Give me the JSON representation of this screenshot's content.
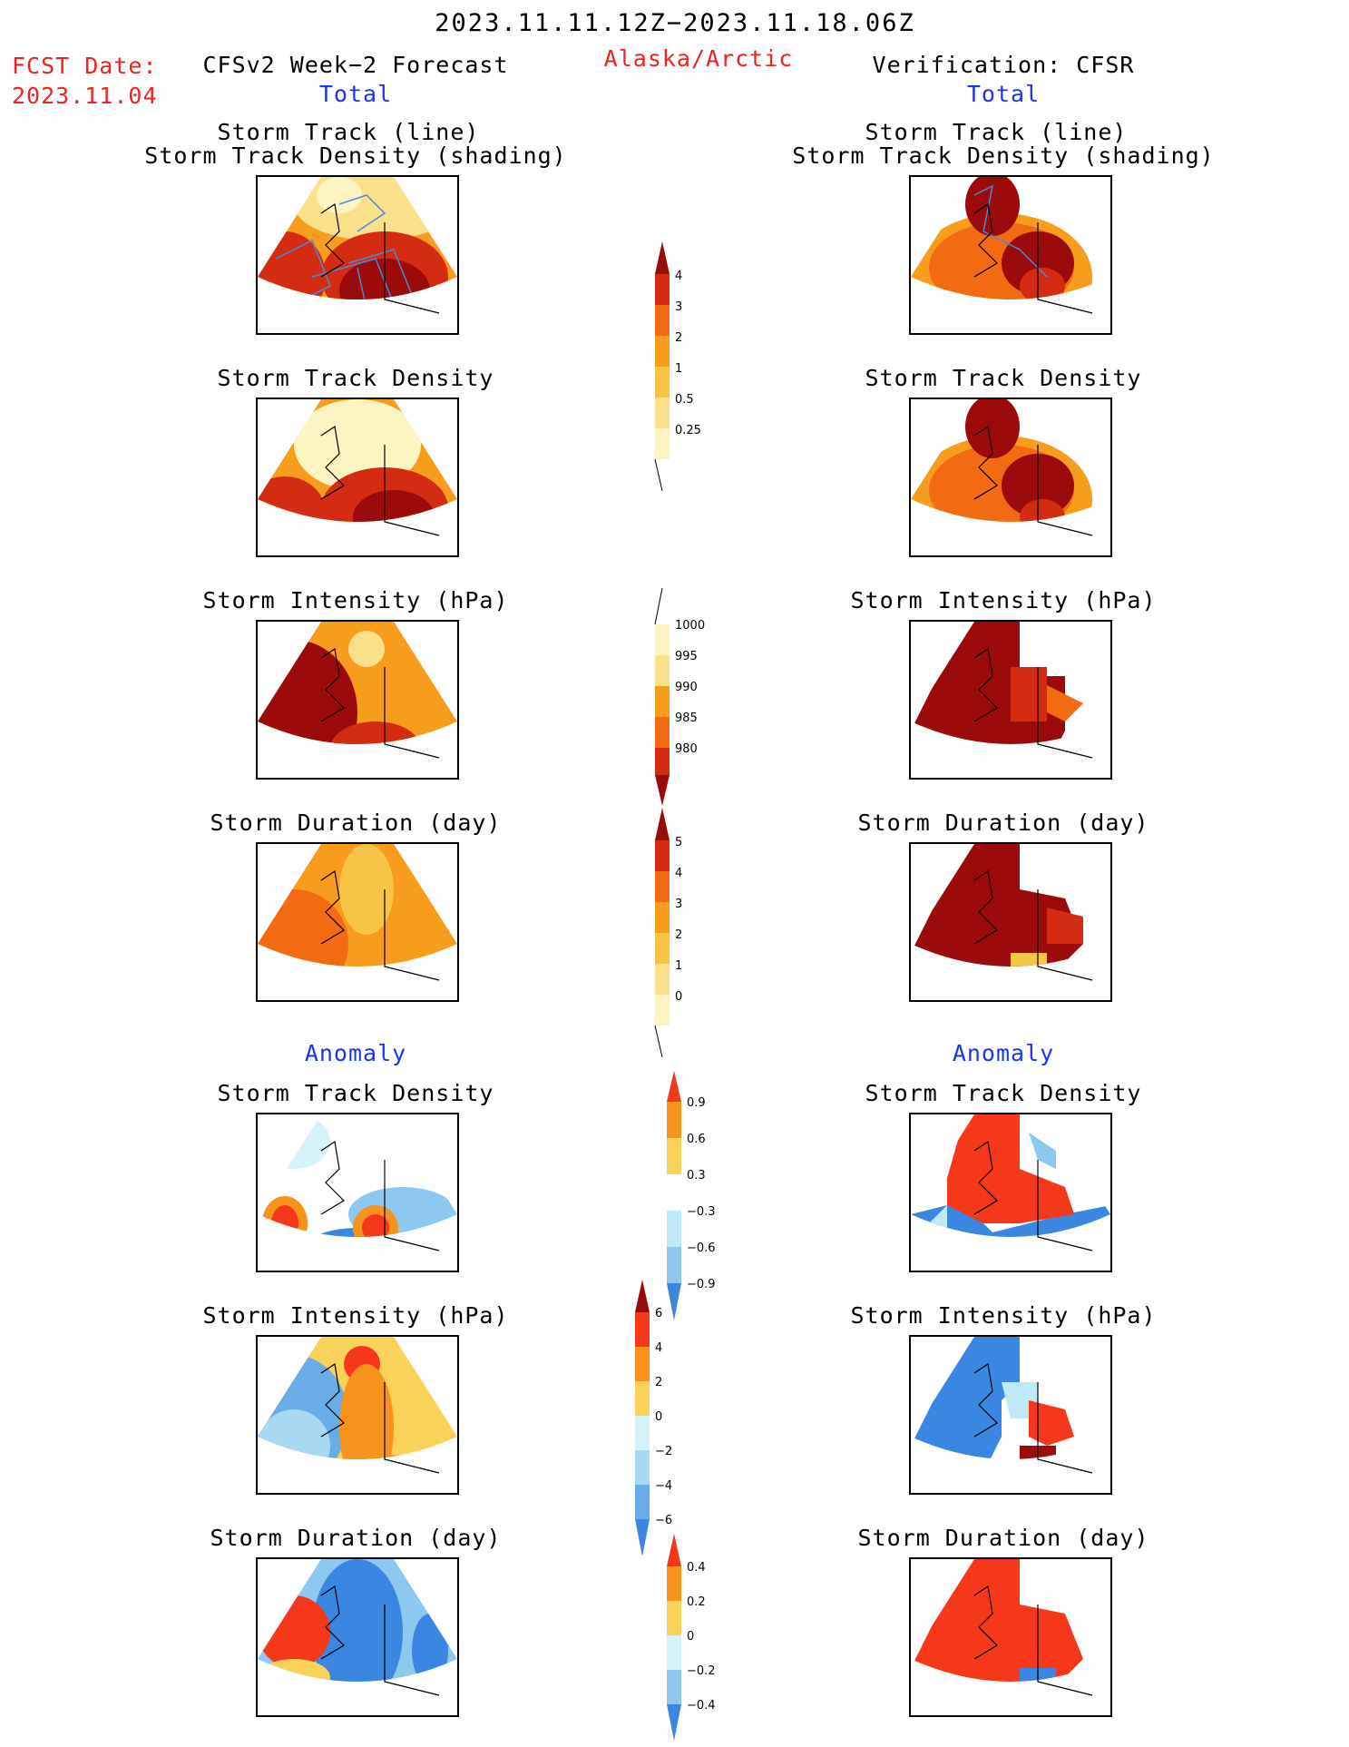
{
  "header": {
    "period": "2023.11.11.12Z−2023.11.18.06Z",
    "fcst_label": "FCST Date:",
    "fcst_date": "2023.11.04",
    "region": "Alaska/Arctic",
    "left_title": "CFSv2 Week−2 Forecast",
    "right_title": "Verification: CFSR",
    "left_sub": "Total",
    "right_sub": "Total"
  },
  "sections": {
    "anomaly_left": "Anomaly",
    "anomaly_right": "Anomaly"
  },
  "panels": {
    "l1": {
      "title1": "Storm Track (line)",
      "title2": "Storm Track Density (shading)"
    },
    "r1": {
      "title1": "Storm Track (line)",
      "title2": "Storm Track Density (shading)"
    },
    "l2": {
      "title": "Storm Track Density"
    },
    "r2": {
      "title": "Storm Track Density"
    },
    "l3": {
      "title": "Storm Intensity (hPa)"
    },
    "r3": {
      "title": "Storm Intensity (hPa)"
    },
    "l4": {
      "title": "Storm Duration (day)"
    },
    "r4": {
      "title": "Storm Duration (day)"
    },
    "l5": {
      "title": "Storm Track Density"
    },
    "r5": {
      "title": "Storm Track Density"
    },
    "l6": {
      "title": "Storm Intensity (hPa)"
    },
    "r6": {
      "title": "Storm Intensity (hPa)"
    },
    "l7": {
      "title": "Storm Duration (day)"
    },
    "r7": {
      "title": "Storm Duration (day)"
    }
  },
  "colorbars": {
    "density": {
      "ticks": [
        "4",
        "3",
        "2",
        "1",
        "0.5",
        "0.25"
      ],
      "colors": [
        "#9b0b0b",
        "#d42c12",
        "#f26a12",
        "#f79c1c",
        "#f8c445",
        "#fbe08b",
        "#fdf5c1"
      ]
    },
    "intensity": {
      "ticks": [
        "1000",
        "995",
        "990",
        "985",
        "980"
      ],
      "colors": [
        "#fdf5c1",
        "#fbe08b",
        "#f79c1c",
        "#f26a12",
        "#d42c12",
        "#9b0b0b"
      ]
    },
    "duration": {
      "ticks": [
        "5",
        "4",
        "3",
        "2",
        "1",
        "0"
      ],
      "colors": [
        "#9b0b0b",
        "#d42c12",
        "#f26a12",
        "#f79c1c",
        "#f8c445",
        "#fbe08b",
        "#fdf5c1"
      ]
    },
    "anom_density": {
      "ticks": [
        "0.9",
        "0.6",
        "0.3",
        "−0.3",
        "−0.6",
        "−0.9"
      ],
      "colors": [
        "#f5381a",
        "#f7921c",
        "#f9d25a",
        "#ffffff",
        "#bfe9f6",
        "#8cc8f0",
        "#3a86e0"
      ]
    },
    "anom_intensity": {
      "ticks": [
        "6",
        "4",
        "2",
        "0",
        "−2",
        "−4",
        "−6"
      ],
      "colors": [
        "#9b0b0b",
        "#f5381a",
        "#f7921c",
        "#f9d25a",
        "#d7f2f9",
        "#a8d8f2",
        "#6aace8",
        "#3a86e0"
      ]
    },
    "anom_duration": {
      "ticks": [
        "0.4",
        "0.2",
        "0",
        "−0.2",
        "−0.4"
      ],
      "colors": [
        "#f5381a",
        "#f7921c",
        "#f9d25a",
        "#d7f2f9",
        "#8cc8f0",
        "#3a86e0"
      ]
    }
  }
}
